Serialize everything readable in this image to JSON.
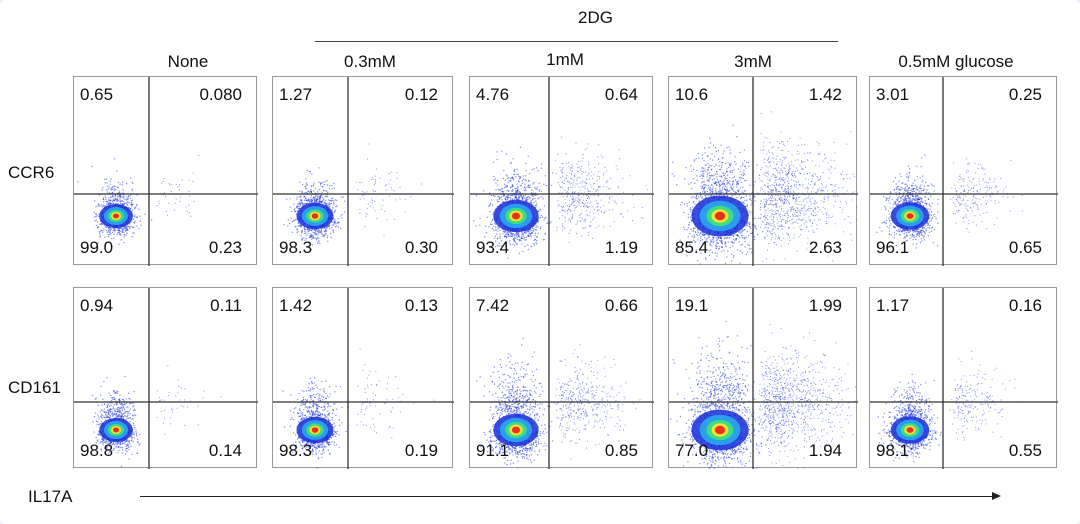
{
  "chart_data": {
    "type": "scatter",
    "group_label": "2DG",
    "columns": [
      "None",
      "0.3mM",
      "1mM",
      "3mM",
      "0.5mM glucose"
    ],
    "rows": [
      {
        "ylabel": "CCR6",
        "quadrants": [
          {
            "ul": "0.65",
            "ur": "0.080",
            "ll": "99.0",
            "lr": "0.23"
          },
          {
            "ul": "1.27",
            "ur": "0.12",
            "ll": "98.3",
            "lr": "0.30"
          },
          {
            "ul": "4.76",
            "ur": "0.64",
            "ll": "93.4",
            "lr": "1.19"
          },
          {
            "ul": "10.6",
            "ur": "1.42",
            "ll": "85.4",
            "lr": "2.63"
          },
          {
            "ul": "3.01",
            "ur": "0.25",
            "ll": "96.1",
            "lr": "0.65"
          }
        ]
      },
      {
        "ylabel": "CD161",
        "quadrants": [
          {
            "ul": "0.94",
            "ur": "0.11",
            "ll": "98.8",
            "lr": "0.14"
          },
          {
            "ul": "1.42",
            "ur": "0.13",
            "ll": "98.3",
            "lr": "0.19"
          },
          {
            "ul": "7.42",
            "ur": "0.66",
            "ll": "91.1",
            "lr": "0.85"
          },
          {
            "ul": "19.1",
            "ur": "1.99",
            "ll": "77.0",
            "lr": "1.94"
          },
          {
            "ul": "1.17",
            "ur": "0.16",
            "ll": "98.1",
            "lr": "0.55"
          }
        ]
      }
    ],
    "xlabel": "IL17A",
    "density_colors": [
      "#1a2fd8",
      "#2aa8f0",
      "#3ee07a",
      "#f5e03a",
      "#e8321e"
    ]
  }
}
